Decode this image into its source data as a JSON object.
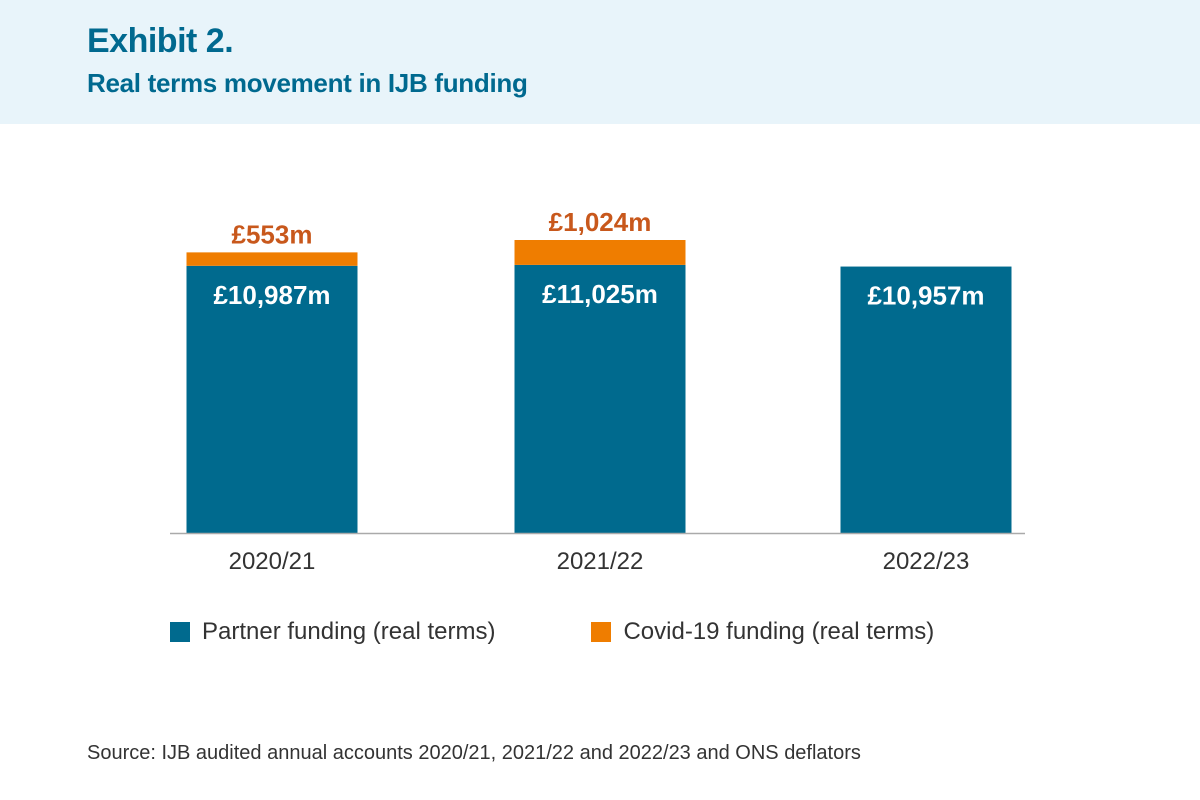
{
  "header": {
    "label": "Exhibit 2.",
    "title": "Real terms movement in IJB funding"
  },
  "colors": {
    "partner": "#006a8e",
    "covid": "#ef7d00",
    "covid_label": "#c8581c",
    "axis": "#aaaaaa",
    "text": "#333333"
  },
  "chart_data": {
    "type": "bar",
    "stacked": true,
    "categories": [
      "2020/21",
      "2021/22",
      "2022/23"
    ],
    "series": [
      {
        "name": "Partner funding (real terms)",
        "values": [
          10987,
          11025,
          10957
        ],
        "labels": [
          "£10,987m",
          "£11,025m",
          "£10,957m"
        ]
      },
      {
        "name": "Covid-19 funding (real terms)",
        "values": [
          553,
          1024,
          0
        ],
        "labels": [
          "£553m",
          "£1,024m",
          ""
        ]
      }
    ],
    "legend": "bottom",
    "grid": false
  },
  "footer": {
    "source": "Source: IJB audited annual accounts 2020/21, 2021/22 and 2022/23 and ONS deflators"
  }
}
